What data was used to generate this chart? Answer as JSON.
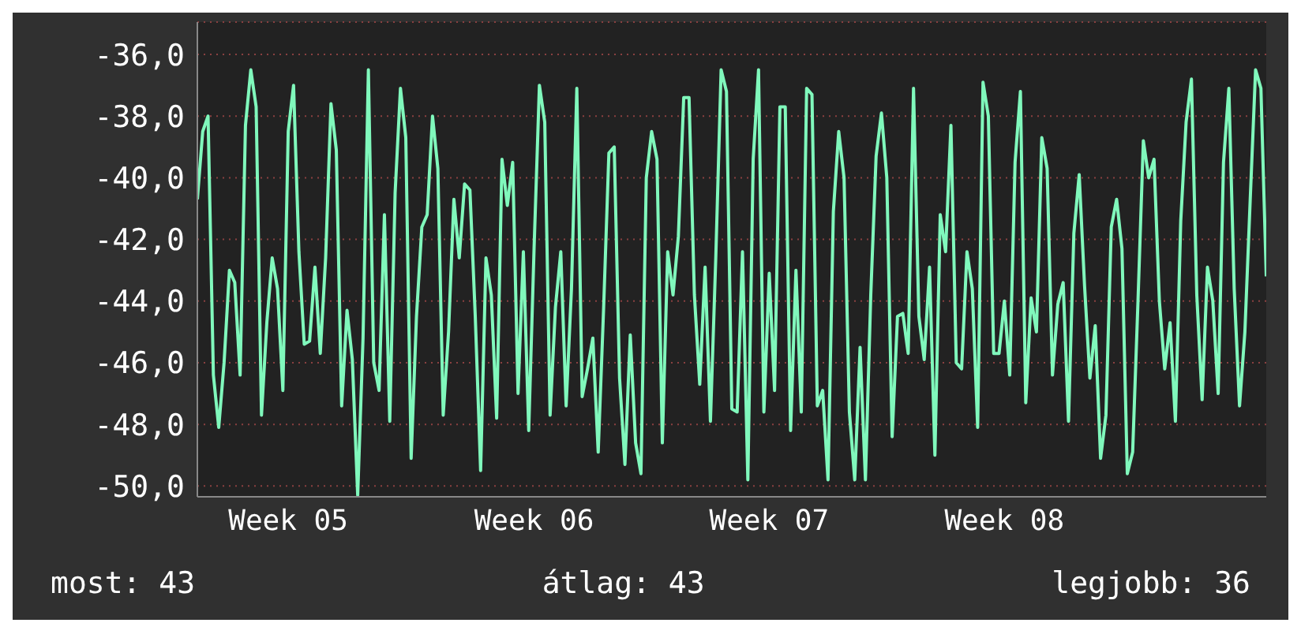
{
  "chart_data": {
    "type": "line",
    "categories": [
      null,
      null,
      null,
      null,
      null,
      null,
      null,
      null,
      null,
      null,
      null,
      null,
      null,
      null,
      null,
      null,
      null,
      "Week 05",
      null,
      null,
      null,
      null,
      null,
      null,
      null,
      null,
      null,
      null,
      null,
      null,
      null,
      null,
      null,
      null,
      null,
      null,
      null,
      null,
      null,
      null,
      null,
      null,
      null,
      null,
      null,
      null,
      null,
      null,
      null,
      null,
      null,
      null,
      null,
      null,
      null,
      null,
      null,
      null,
      null,
      null,
      null,
      null,
      null,
      "Week 06",
      null,
      null,
      null,
      null,
      null,
      null,
      null,
      null,
      null,
      null,
      null,
      null,
      null,
      null,
      null,
      null,
      null,
      null,
      null,
      null,
      null,
      null,
      null,
      null,
      null,
      null,
      null,
      null,
      null,
      null,
      null,
      null,
      null,
      null,
      null,
      null,
      null,
      null,
      null,
      null,
      null,
      null,
      null,
      "Week 07",
      null,
      null,
      null,
      null,
      null,
      null,
      null,
      null,
      null,
      null,
      null,
      null,
      null,
      null,
      null,
      null,
      null,
      null,
      null,
      null,
      null,
      null,
      null,
      null,
      null,
      null,
      null,
      null,
      null,
      null,
      null,
      null,
      null,
      null,
      null,
      null,
      null,
      null,
      null,
      null,
      null,
      null,
      null,
      "Week 08",
      null,
      null,
      null,
      null,
      null,
      null,
      null,
      null,
      null,
      null,
      null,
      null,
      null,
      null,
      null,
      null,
      null,
      null,
      null,
      null,
      null,
      null,
      null,
      null,
      null,
      null,
      null,
      null,
      null,
      null,
      null,
      null,
      null,
      null,
      null,
      null,
      null,
      null,
      null,
      null,
      null,
      null,
      null,
      null,
      null,
      null,
      null,
      null,
      null
    ],
    "series": [
      {
        "color": "#80f8bc",
        "values": [
          -40.7,
          -38.5,
          -38.0,
          -46.4,
          -48.1,
          -46.0,
          -43.0,
          -43.4,
          -46.4,
          -38.3,
          -36.5,
          -37.7,
          -47.7,
          -44.7,
          -42.6,
          -43.6,
          -46.9,
          -38.5,
          -37.0,
          -42.4,
          -45.4,
          -45.3,
          -42.9,
          -45.7,
          -42.6,
          -37.6,
          -39.1,
          -47.4,
          -44.3,
          -45.9,
          -50.3,
          -45.2,
          -36.5,
          -46.0,
          -46.9,
          -41.2,
          -47.9,
          -40.5,
          -37.1,
          -38.7,
          -49.1,
          -44.5,
          -41.6,
          -41.2,
          -38.0,
          -39.7,
          -47.7,
          -45.0,
          -40.7,
          -42.6,
          -40.2,
          -40.4,
          -44.5,
          -49.5,
          -42.6,
          -43.8,
          -47.8,
          -39.4,
          -40.9,
          -39.5,
          -47.0,
          -42.4,
          -48.2,
          -42.3,
          -37.0,
          -38.2,
          -47.7,
          -44.2,
          -42.4,
          -47.4,
          -43.6,
          -37.1,
          -47.1,
          -46.2,
          -45.2,
          -48.9,
          -44.3,
          -39.2,
          -39.0,
          -46.5,
          -49.3,
          -45.1,
          -48.6,
          -49.6,
          -40.0,
          -38.5,
          -39.4,
          -48.6,
          -42.4,
          -43.8,
          -41.9,
          -37.4,
          -37.4,
          -43.8,
          -46.7,
          -42.9,
          -47.9,
          -42.6,
          -36.5,
          -37.2,
          -47.5,
          -47.6,
          -42.4,
          -49.8,
          -39.4,
          -36.5,
          -47.6,
          -43.1,
          -46.9,
          -37.7,
          -37.7,
          -48.2,
          -43.0,
          -47.6,
          -37.1,
          -37.3,
          -47.4,
          -46.9,
          -49.8,
          -41.1,
          -38.5,
          -40.0,
          -47.6,
          -49.8,
          -45.5,
          -49.8,
          -43.8,
          -39.3,
          -37.9,
          -40.0,
          -48.4,
          -44.5,
          -44.4,
          -45.7,
          -37.1,
          -44.5,
          -45.9,
          -42.9,
          -49.0,
          -41.2,
          -42.4,
          -38.3,
          -46.0,
          -46.2,
          -42.4,
          -43.6,
          -48.1,
          -36.9,
          -38.0,
          -45.7,
          -45.7,
          -44.0,
          -46.4,
          -39.5,
          -37.2,
          -47.3,
          -43.9,
          -45.0,
          -38.7,
          -39.7,
          -46.4,
          -44.1,
          -43.4,
          -47.9,
          -41.8,
          -39.9,
          -43.5,
          -46.5,
          -44.8,
          -49.1,
          -47.7,
          -41.6,
          -40.7,
          -42.3,
          -49.6,
          -48.9,
          -44.0,
          -38.8,
          -40.0,
          -39.4,
          -44.0,
          -46.2,
          -44.7,
          -47.9,
          -41.4,
          -38.2,
          -36.8,
          -43.8,
          -47.2,
          -42.9,
          -44.0,
          -47.0,
          -39.5,
          -37.1,
          -43.6,
          -47.4,
          -45.0,
          -40.7,
          -36.5,
          -37.1,
          -43.2
        ]
      }
    ],
    "ylim": [
      -50.35,
      -34.95
    ],
    "yticks": [
      {
        "value": -36,
        "label": "-36,0"
      },
      {
        "value": -38,
        "label": "-38,0"
      },
      {
        "value": -40,
        "label": "-40,0"
      },
      {
        "value": -42,
        "label": "-42,0"
      },
      {
        "value": -44,
        "label": "-44,0"
      },
      {
        "value": -46,
        "label": "-46,0"
      },
      {
        "value": -48,
        "label": "-48,0"
      },
      {
        "value": -50,
        "label": "-50,0"
      }
    ],
    "grid": "y",
    "marker": "none",
    "line_style": "solid",
    "annotations": [
      "most: 43",
      "átlag: 43",
      "legjobb: 36"
    ]
  }
}
